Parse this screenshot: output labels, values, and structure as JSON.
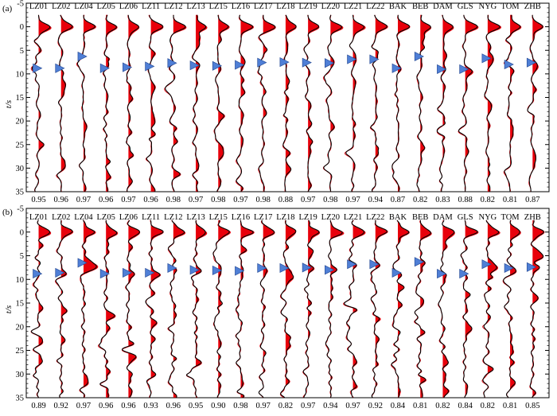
{
  "figure": {
    "panel_labels": [
      "(a)",
      "(b)"
    ],
    "y_axis_label": "t/s"
  },
  "chart_data": [
    {
      "type": "line",
      "panel": "(a)",
      "ylabel": "t/s",
      "ylim": [
        -5,
        35
      ],
      "y_inverted": true,
      "y_ticks": [
        -5,
        0,
        5,
        10,
        15,
        20,
        25,
        30,
        35
      ],
      "stations": [
        "LZ01",
        "LZ02",
        "LZ04",
        "LZ05",
        "LZ06",
        "LZ11",
        "LZ12",
        "LZ13",
        "LZ15",
        "LZ16",
        "LZ17",
        "LZ18",
        "LZ19",
        "LZ20",
        "LZ21",
        "LZ22",
        "BAK",
        "BEB",
        "DAM",
        "GLS",
        "NYG",
        "TOM",
        "ZHB"
      ],
      "correlation": [
        "0.95",
        "0.96",
        "0.97",
        "0.96",
        "0.97",
        "0.96",
        "0.98",
        "0.97",
        "0.98",
        "0.97",
        "0.98",
        "0.88",
        "0.97",
        "0.98",
        "0.97",
        "0.94",
        "0.87",
        "0.82",
        "0.83",
        "0.88",
        "0.82",
        "0.81",
        "0.87"
      ],
      "marker_times_s": [
        8.8,
        8.8,
        6.3,
        8.8,
        8.6,
        8.4,
        7.7,
        8.2,
        8.3,
        8.1,
        7.6,
        7.5,
        7.6,
        7.7,
        6.9,
        6.9,
        8.8,
        6.3,
        9.0,
        9.0,
        6.7,
        8.0,
        7.6
      ],
      "series": [
        {
          "role": "observed",
          "color": "#000000"
        },
        {
          "role": "synthetic",
          "color": "#e8000b"
        }
      ]
    },
    {
      "type": "line",
      "panel": "(b)",
      "ylabel": "t/s",
      "ylim": [
        -5,
        35
      ],
      "y_inverted": true,
      "y_ticks": [
        -5,
        0,
        5,
        10,
        15,
        20,
        25,
        30,
        35
      ],
      "stations": [
        "LZ01",
        "LZ02",
        "LZ04",
        "LZ05",
        "LZ06",
        "LZ11",
        "LZ12",
        "LZ13",
        "LZ15",
        "LZ16",
        "LZ17",
        "LZ18",
        "LZ19",
        "LZ20",
        "LZ21",
        "LZ22",
        "BAK",
        "BEB",
        "DAM",
        "GLS",
        "NYG",
        "TOM",
        "ZHB"
      ],
      "correlation": [
        "0.89",
        "0.92",
        "0.97",
        "0.96",
        "0.96",
        "0.93",
        "0.96",
        "0.95",
        "0.90",
        "0.98",
        "0.97",
        "0.82",
        "0.97",
        "0.94",
        "0.97",
        "0.92",
        "0.84",
        "0.81",
        "0.82",
        "0.84",
        "0.82",
        "0.81",
        "0.85"
      ],
      "marker_times_s": [
        8.8,
        8.6,
        6.5,
        8.8,
        8.6,
        8.6,
        7.6,
        8.0,
        8.1,
        8.2,
        7.6,
        7.6,
        7.5,
        8.0,
        6.8,
        6.8,
        8.6,
        6.3,
        8.8,
        8.8,
        6.8,
        7.6,
        7.4
      ],
      "series": [
        {
          "role": "observed",
          "color": "#000000"
        },
        {
          "role": "synthetic",
          "color": "#e8000b"
        }
      ]
    }
  ]
}
